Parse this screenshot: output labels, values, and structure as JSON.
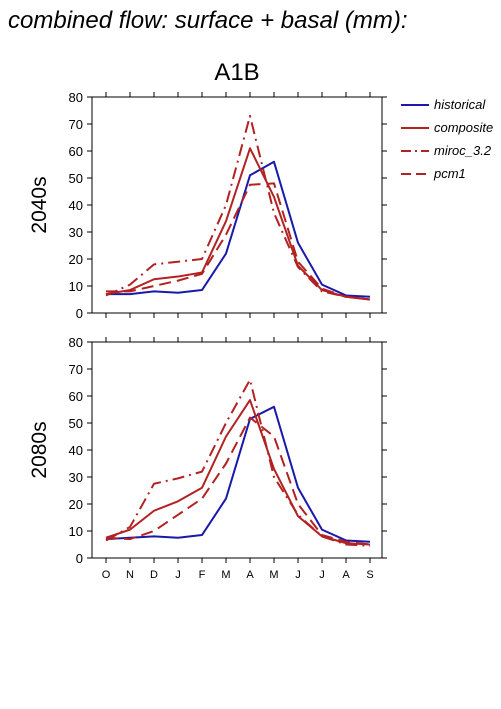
{
  "figure": {
    "title": "combined flow: surface + basal (mm):",
    "scenario": "A1B"
  },
  "colors": {
    "historical": "#1a1aaa",
    "composite": "#b22222",
    "miroc_3.2": "#b22222",
    "pcm1": "#b22222"
  },
  "legend": {
    "position": "right",
    "entries": [
      {
        "label": "historical",
        "style": "solid",
        "color": "#1a1aaa"
      },
      {
        "label": "composite",
        "style": "solid",
        "color": "#b22222"
      },
      {
        "label": "miroc_3.2",
        "style": "dashdot",
        "color": "#b22222"
      },
      {
        "label": "pcm1",
        "style": "dashed",
        "color": "#b22222"
      }
    ]
  },
  "chart_data": [
    {
      "type": "line",
      "ylabel": "2040s",
      "ylim": [
        0,
        80
      ],
      "yticks": [
        0,
        10,
        20,
        30,
        40,
        50,
        60,
        70,
        80
      ],
      "categories": [
        "O",
        "N",
        "D",
        "J",
        "F",
        "M",
        "A",
        "M",
        "J",
        "J",
        "A",
        "S"
      ],
      "series": [
        {
          "name": "historical",
          "style": "solid",
          "values": [
            7,
            7,
            8,
            7.5,
            8.5,
            22,
            51,
            56,
            26,
            10.5,
            6.5,
            6
          ]
        },
        {
          "name": "composite",
          "style": "solid",
          "values": [
            7,
            8.5,
            12.5,
            13.5,
            15,
            34,
            61,
            43,
            17.5,
            8.5,
            6,
            5
          ]
        },
        {
          "name": "miroc_3.2",
          "style": "dashdot",
          "values": [
            6.5,
            10.5,
            18,
            19,
            20,
            40,
            73,
            37,
            17,
            8,
            6,
            5
          ]
        },
        {
          "name": "pcm1",
          "style": "dashed",
          "values": [
            8,
            8,
            10,
            12,
            14.5,
            29,
            47.5,
            48,
            19,
            9,
            6,
            5
          ]
        }
      ]
    },
    {
      "type": "line",
      "ylabel": "2080s",
      "ylim": [
        0,
        80
      ],
      "yticks": [
        0,
        10,
        20,
        30,
        40,
        50,
        60,
        70,
        80
      ],
      "categories": [
        "O",
        "N",
        "D",
        "J",
        "F",
        "M",
        "A",
        "M",
        "J",
        "J",
        "A",
        "S"
      ],
      "series": [
        {
          "name": "historical",
          "style": "solid",
          "values": [
            7,
            7.5,
            8,
            7.5,
            8.5,
            22,
            51.5,
            56,
            26,
            10.5,
            6.5,
            6
          ]
        },
        {
          "name": "composite",
          "style": "solid",
          "values": [
            7.5,
            10.5,
            17.5,
            21,
            26,
            45,
            58.5,
            33,
            15.5,
            8,
            5.5,
            5
          ]
        },
        {
          "name": "miroc_3.2",
          "style": "dashdot",
          "values": [
            6.5,
            11.5,
            27.5,
            29.5,
            32,
            50,
            66,
            30,
            16,
            8,
            5,
            4.5
          ]
        },
        {
          "name": "pcm1",
          "style": "dashed",
          "values": [
            7.5,
            7,
            10,
            16,
            22,
            35,
            52,
            45,
            20,
            8.5,
            6,
            5
          ]
        }
      ]
    }
  ]
}
